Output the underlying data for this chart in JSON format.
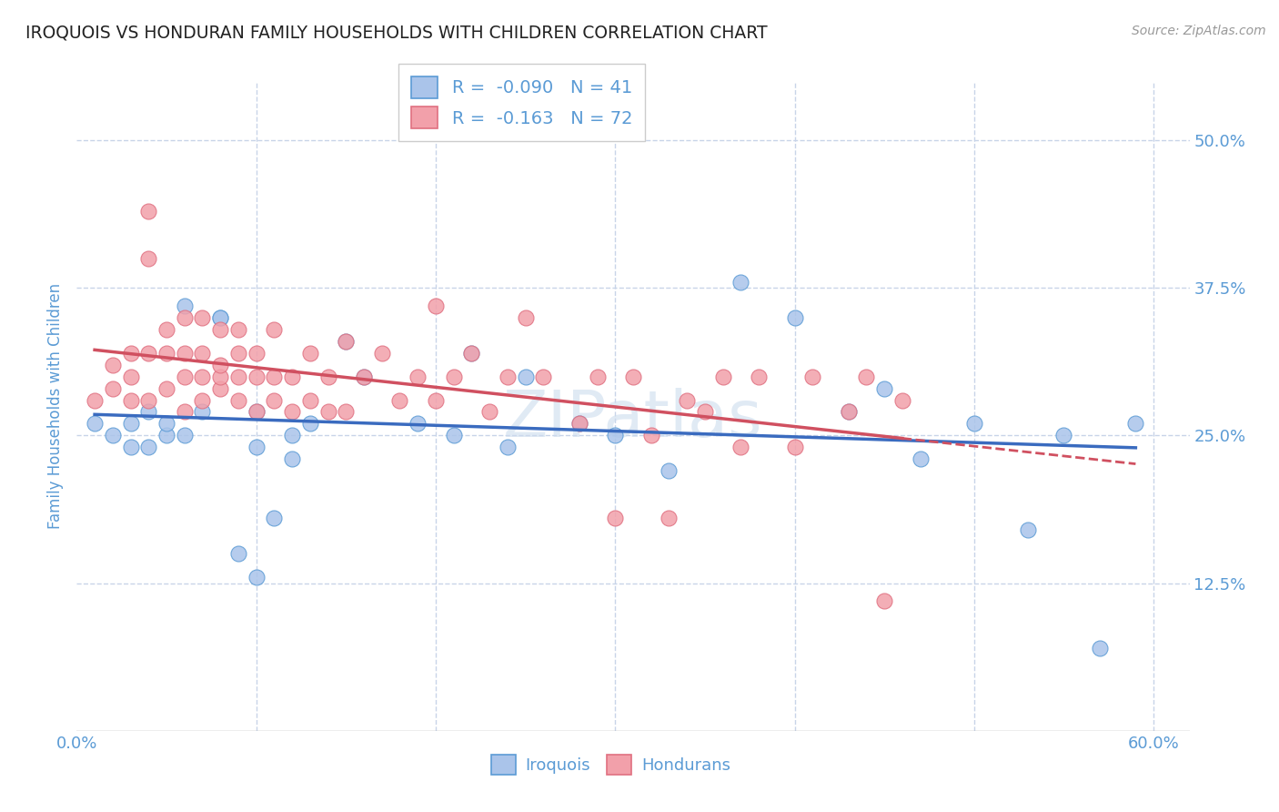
{
  "title": "IROQUOIS VS HONDURAN FAMILY HOUSEHOLDS WITH CHILDREN CORRELATION CHART",
  "source": "Source: ZipAtlas.com",
  "ylabel": "Family Households with Children",
  "xlim": [
    0.0,
    0.62
  ],
  "ylim": [
    0.0,
    0.55
  ],
  "yticks": [
    0.0,
    0.125,
    0.25,
    0.375,
    0.5
  ],
  "ytick_labels": [
    "",
    "12.5%",
    "25.0%",
    "37.5%",
    "50.0%"
  ],
  "xtick_positions": [
    0.0,
    0.1,
    0.2,
    0.3,
    0.4,
    0.5,
    0.6
  ],
  "xtick_labels": [
    "0.0%",
    "",
    "",
    "",
    "",
    "",
    "60.0%"
  ],
  "legend_line1": "R =  -0.090   N = 41",
  "legend_line2": "R =  -0.163   N = 72",
  "iroquois_color": "#aac4ea",
  "hondurans_color": "#f2a0aa",
  "iroquois_edge_color": "#5b9bd5",
  "hondurans_edge_color": "#e07080",
  "iroquois_line_color": "#3a6bbf",
  "hondurans_line_color": "#d05060",
  "background_color": "#ffffff",
  "grid_color": "#c8d4e8",
  "title_color": "#222222",
  "axis_label_color": "#5b9bd5",
  "tick_label_color": "#5b9bd5",
  "legend_text_color": "#5b9bd5",
  "watermark_color": "#ccdcee",
  "iroquois_x": [
    0.01,
    0.02,
    0.03,
    0.03,
    0.04,
    0.04,
    0.05,
    0.05,
    0.06,
    0.06,
    0.07,
    0.08,
    0.08,
    0.09,
    0.1,
    0.1,
    0.1,
    0.11,
    0.12,
    0.12,
    0.13,
    0.15,
    0.16,
    0.19,
    0.21,
    0.22,
    0.24,
    0.25,
    0.28,
    0.3,
    0.33,
    0.37,
    0.4,
    0.43,
    0.45,
    0.47,
    0.5,
    0.53,
    0.55,
    0.57,
    0.59
  ],
  "iroquois_y": [
    0.26,
    0.25,
    0.26,
    0.24,
    0.24,
    0.27,
    0.25,
    0.26,
    0.25,
    0.36,
    0.27,
    0.35,
    0.35,
    0.15,
    0.13,
    0.24,
    0.27,
    0.18,
    0.25,
    0.23,
    0.26,
    0.33,
    0.3,
    0.26,
    0.25,
    0.32,
    0.24,
    0.3,
    0.26,
    0.25,
    0.22,
    0.38,
    0.35,
    0.27,
    0.29,
    0.23,
    0.26,
    0.17,
    0.25,
    0.07,
    0.26
  ],
  "hondurans_x": [
    0.01,
    0.02,
    0.02,
    0.03,
    0.03,
    0.03,
    0.04,
    0.04,
    0.04,
    0.04,
    0.05,
    0.05,
    0.05,
    0.06,
    0.06,
    0.06,
    0.06,
    0.07,
    0.07,
    0.07,
    0.07,
    0.08,
    0.08,
    0.08,
    0.08,
    0.09,
    0.09,
    0.09,
    0.09,
    0.1,
    0.1,
    0.1,
    0.11,
    0.11,
    0.11,
    0.12,
    0.12,
    0.13,
    0.13,
    0.14,
    0.14,
    0.15,
    0.15,
    0.16,
    0.17,
    0.18,
    0.19,
    0.2,
    0.2,
    0.21,
    0.22,
    0.23,
    0.24,
    0.25,
    0.26,
    0.28,
    0.29,
    0.3,
    0.31,
    0.32,
    0.33,
    0.34,
    0.35,
    0.36,
    0.37,
    0.38,
    0.4,
    0.41,
    0.43,
    0.44,
    0.45,
    0.46
  ],
  "hondurans_y": [
    0.28,
    0.29,
    0.31,
    0.28,
    0.3,
    0.32,
    0.28,
    0.32,
    0.4,
    0.44,
    0.29,
    0.32,
    0.34,
    0.27,
    0.3,
    0.32,
    0.35,
    0.28,
    0.3,
    0.32,
    0.35,
    0.29,
    0.3,
    0.31,
    0.34,
    0.28,
    0.3,
    0.32,
    0.34,
    0.27,
    0.3,
    0.32,
    0.28,
    0.3,
    0.34,
    0.27,
    0.3,
    0.28,
    0.32,
    0.27,
    0.3,
    0.27,
    0.33,
    0.3,
    0.32,
    0.28,
    0.3,
    0.28,
    0.36,
    0.3,
    0.32,
    0.27,
    0.3,
    0.35,
    0.3,
    0.26,
    0.3,
    0.18,
    0.3,
    0.25,
    0.18,
    0.28,
    0.27,
    0.3,
    0.24,
    0.3,
    0.24,
    0.3,
    0.27,
    0.3,
    0.11,
    0.28
  ]
}
